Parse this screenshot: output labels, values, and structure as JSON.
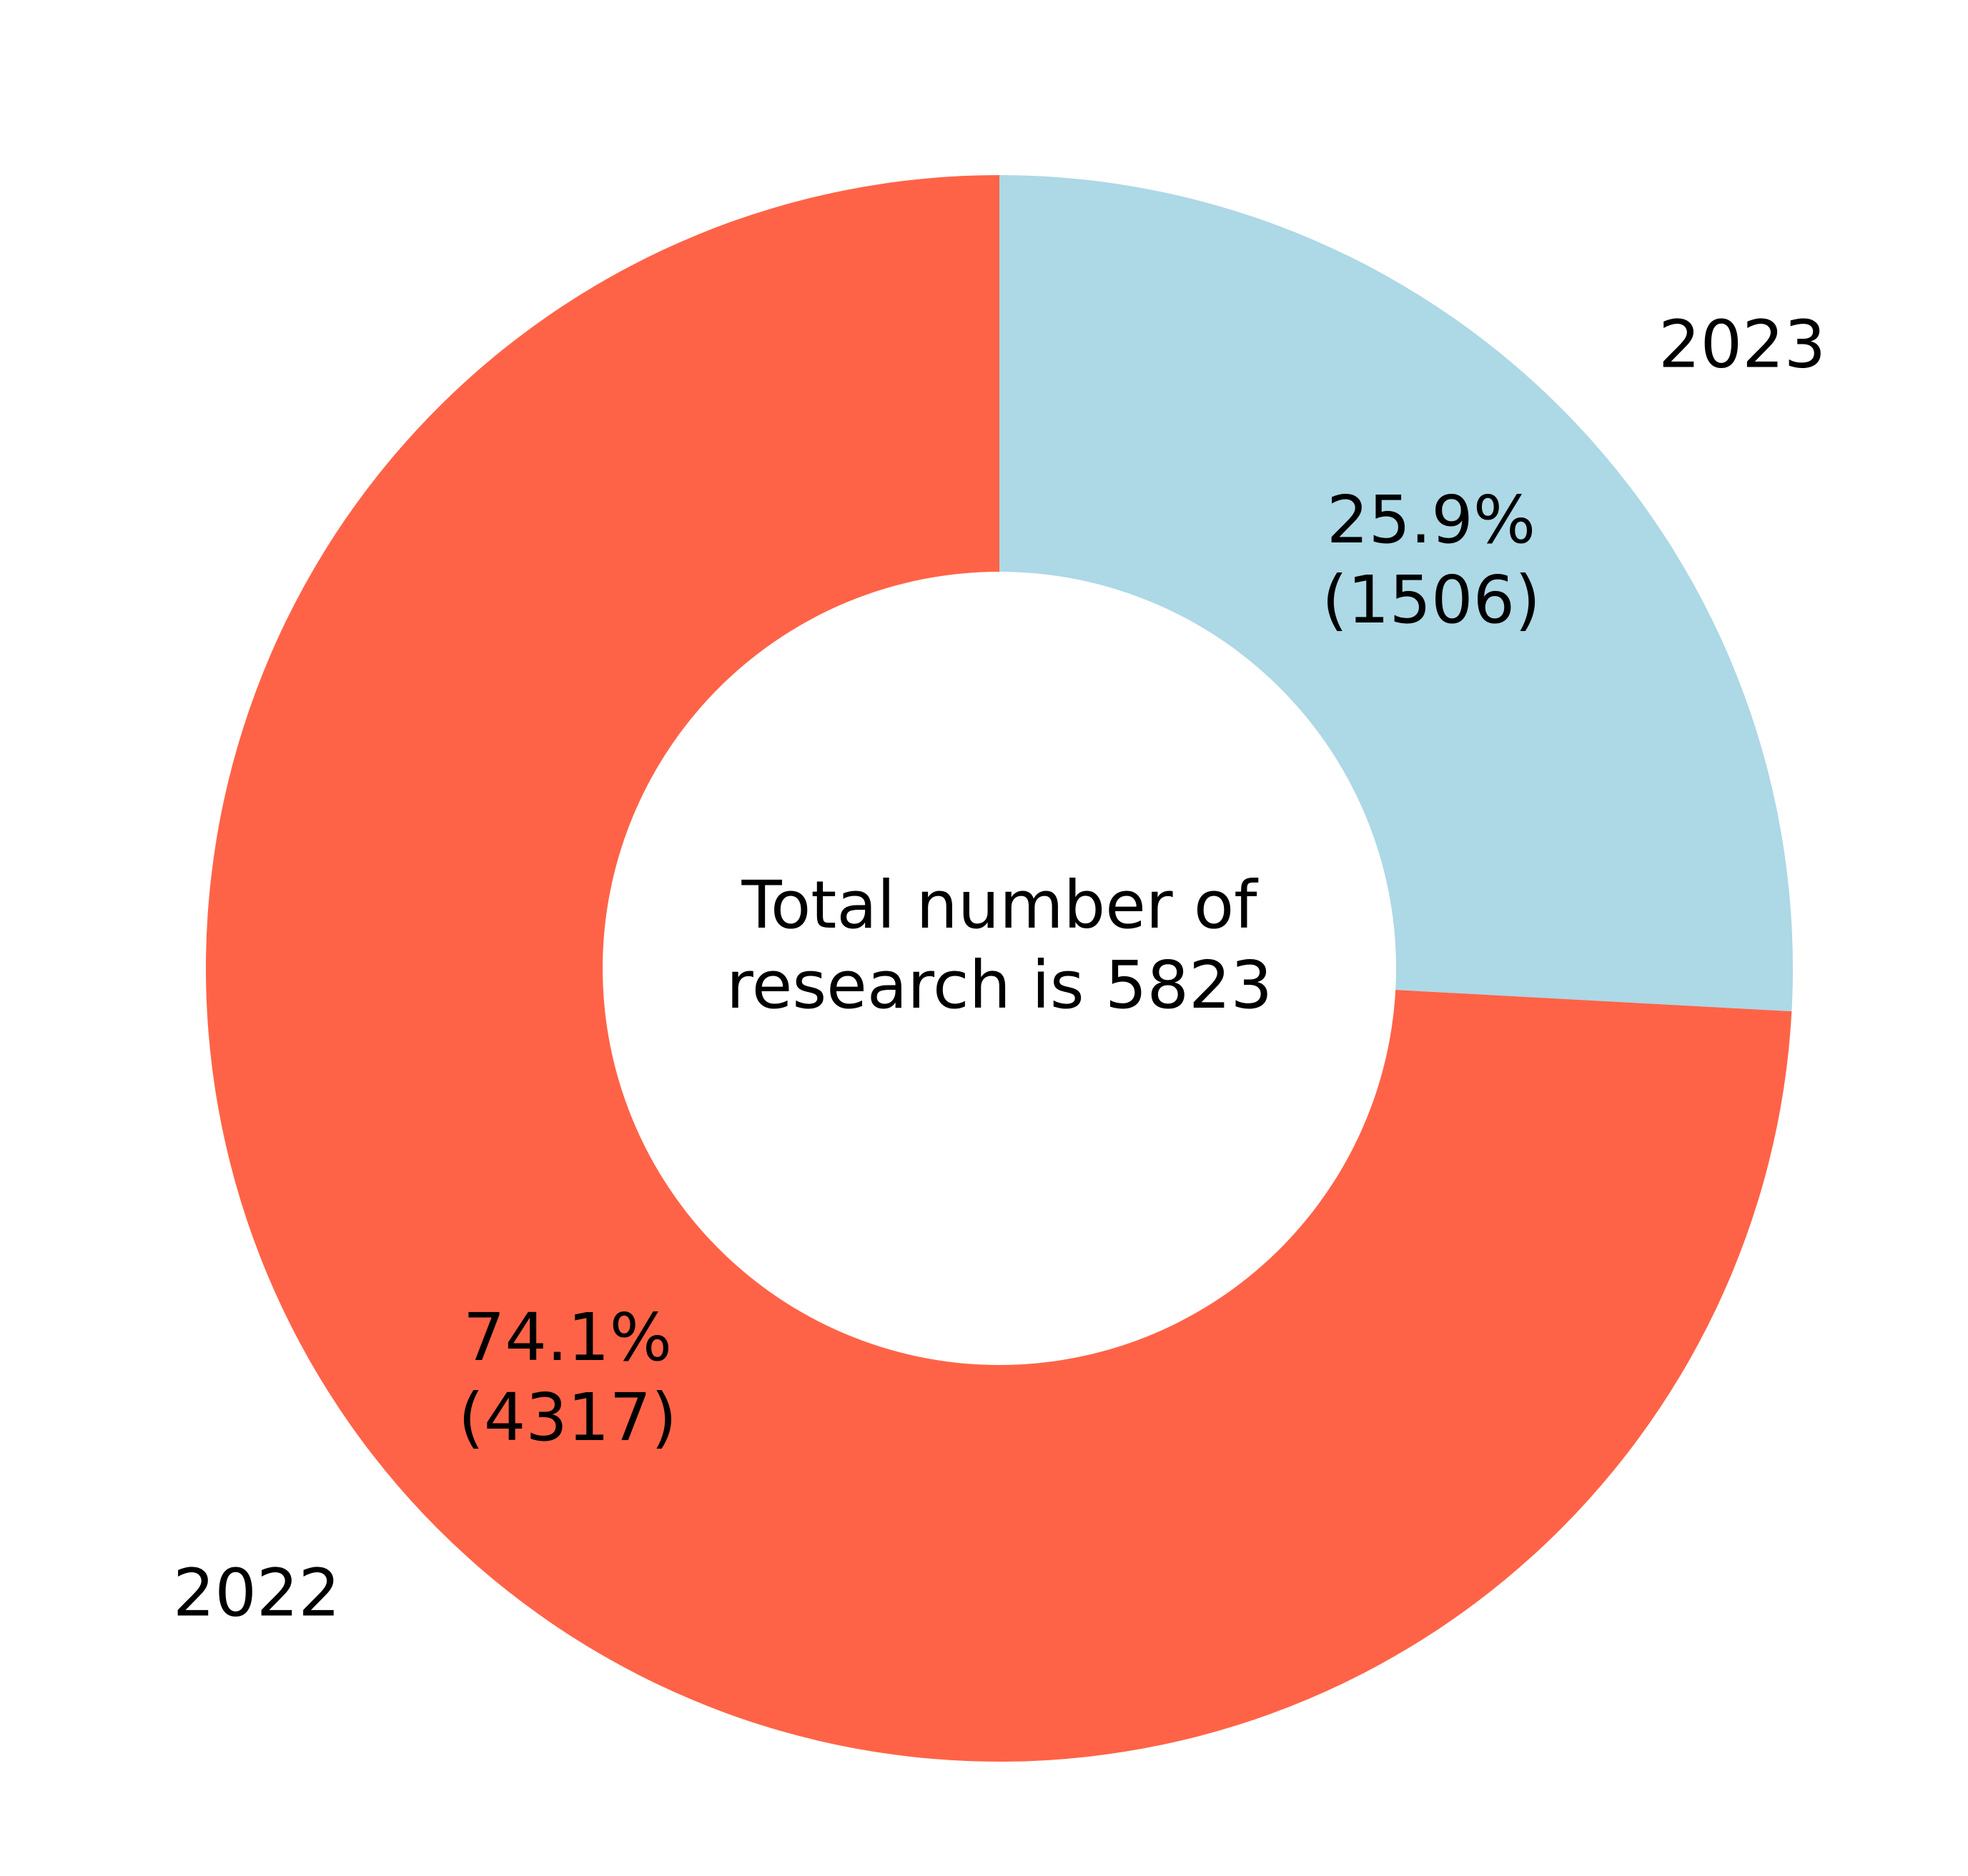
{
  "chart_data": {
    "type": "pie",
    "donut": true,
    "title": "",
    "center_text": [
      "Total number of",
      "research is 5823"
    ],
    "total": 5823,
    "slices": [
      {
        "label": "2023",
        "value": 1506,
        "percent": "25.9%",
        "count_text": "(1506)",
        "color": "#ADD8E6"
      },
      {
        "label": "2022",
        "value": 4317,
        "percent": "74.1%",
        "count_text": "(4317)",
        "color": "#FF6347"
      }
    ],
    "start_angle_deg": 90,
    "direction": "clockwise",
    "legend": "none"
  }
}
